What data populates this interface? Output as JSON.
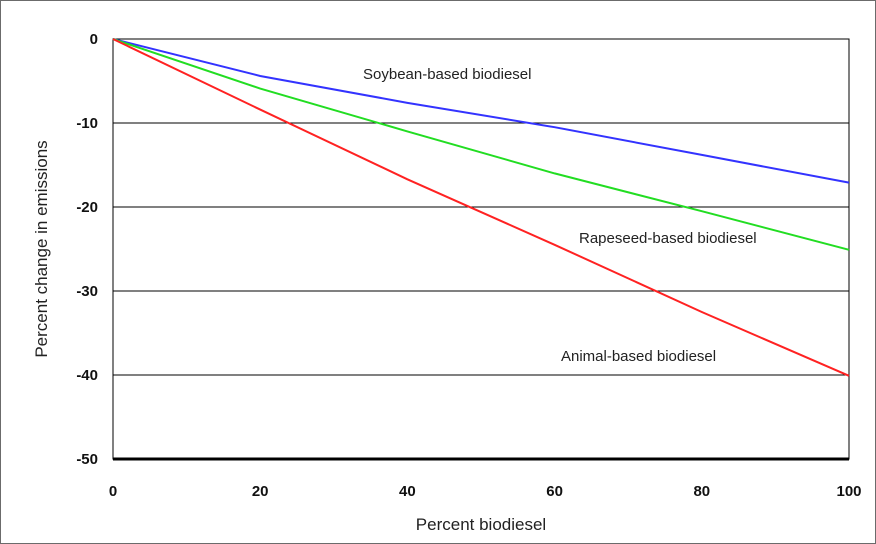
{
  "chart_data": {
    "type": "line",
    "title": "",
    "xlabel": "Percent biodiesel",
    "ylabel": "Percent change in emissions",
    "xlim": [
      0,
      100
    ],
    "ylim": [
      -50,
      0
    ],
    "xticks": [
      0,
      20,
      40,
      60,
      80,
      100
    ],
    "yticks": [
      0,
      -10,
      -20,
      -30,
      -40,
      -50
    ],
    "grid": "horizontal",
    "series": [
      {
        "name": "Soybean-based biodiesel",
        "color": "#3333ff",
        "x": [
          0,
          20,
          40,
          60,
          80,
          100
        ],
        "y": [
          0,
          -4.4,
          -7.6,
          -10.5,
          -13.8,
          -17.1
        ]
      },
      {
        "name": "Rapeseed-based biodiesel",
        "color": "#22dd22",
        "x": [
          0,
          20,
          40,
          60,
          80,
          100
        ],
        "y": [
          0,
          -5.9,
          -11,
          -16,
          -20.5,
          -25.1
        ]
      },
      {
        "name": "Animal-based biodiesel",
        "color": "#ff2222",
        "x": [
          0,
          20,
          40,
          60,
          80,
          100
        ],
        "y": [
          0,
          -8.4,
          -16.7,
          -24.5,
          -32.5,
          -40.1
        ]
      }
    ]
  }
}
